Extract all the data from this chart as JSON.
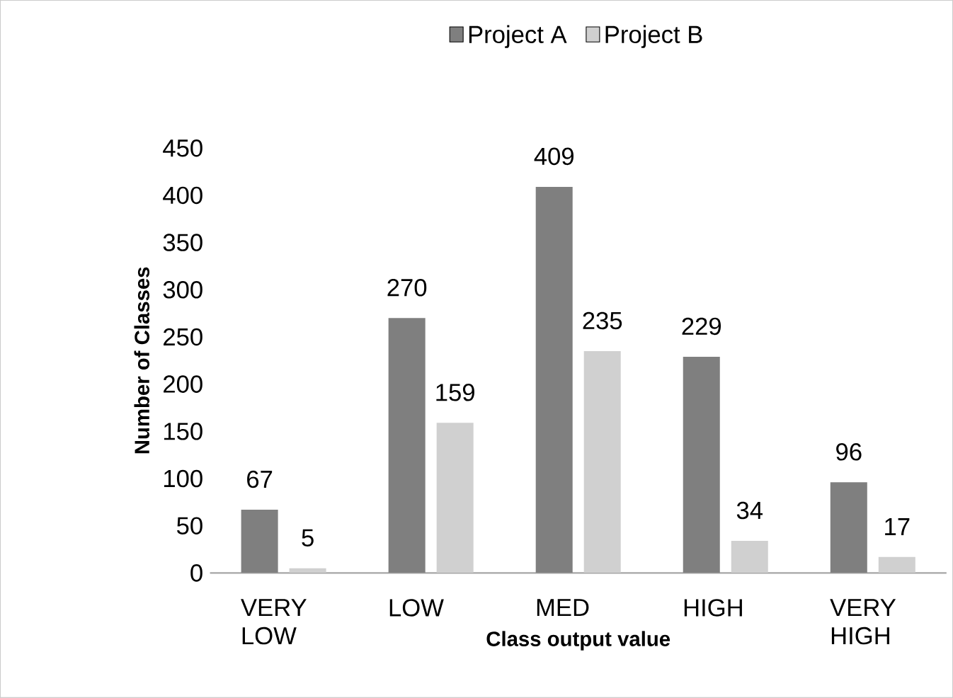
{
  "chart_data": {
    "type": "bar",
    "xlabel": "Class output value",
    "ylabel": "Number of Classes",
    "categories": [
      "VERY LOW",
      "LOW",
      "MED",
      "HIGH",
      "VERY HIGH"
    ],
    "series": [
      {
        "name": "Project A",
        "color": "#7f7f7f",
        "values": [
          67,
          270,
          409,
          229,
          96
        ]
      },
      {
        "name": "Project B",
        "color": "#d0d0d0",
        "values": [
          5,
          159,
          235,
          34,
          17
        ]
      }
    ],
    "ylim": [
      0,
      450
    ],
    "yticks": [
      0,
      50,
      100,
      150,
      200,
      250,
      300,
      350,
      400,
      450
    ],
    "data_labels": true,
    "legend": "top",
    "grid": false
  }
}
